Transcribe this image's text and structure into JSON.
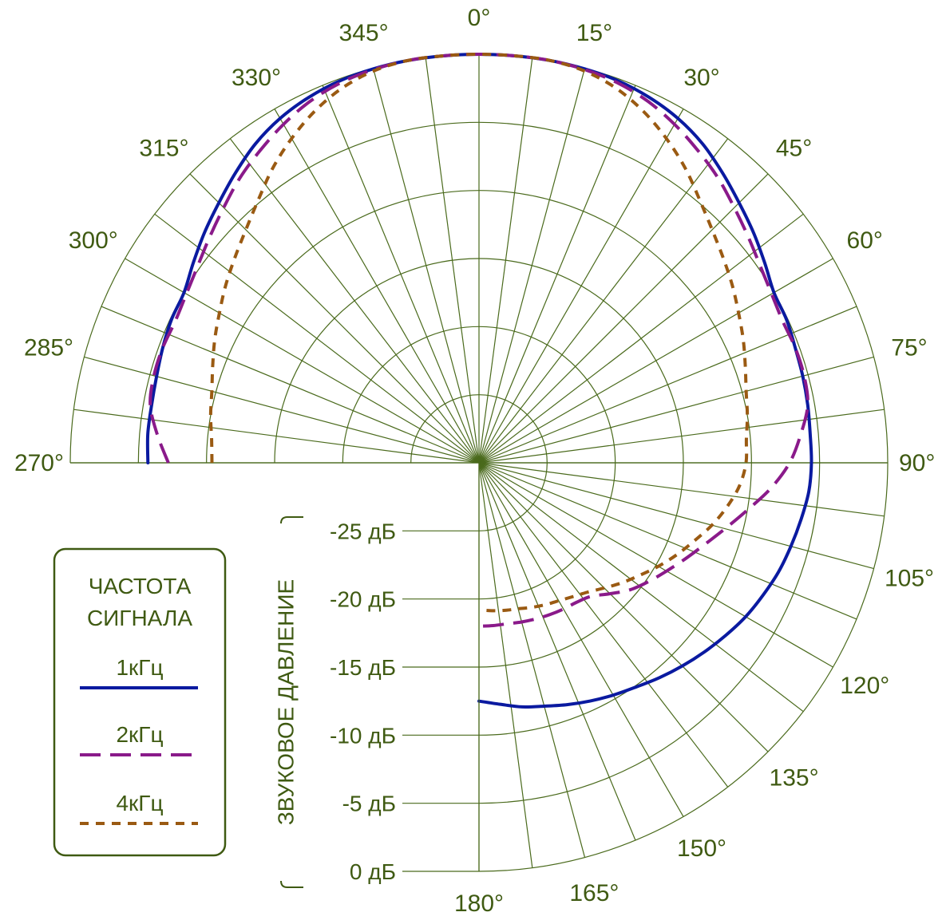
{
  "chart_data": {
    "type": "polar-line",
    "angle_unit": "degrees",
    "angle_zero": "top",
    "angle_direction": "clockwise",
    "angle_ticks": [
      "0°",
      "15°",
      "30°",
      "45°",
      "60°",
      "75°",
      "90°",
      "105°",
      "120°",
      "135°",
      "150°",
      "165°",
      "180°",
      "270°",
      "285°",
      "300°",
      "315°",
      "330°",
      "345°"
    ],
    "angle_tick_values": [
      0,
      15,
      30,
      45,
      60,
      75,
      90,
      105,
      120,
      135,
      150,
      165,
      180,
      270,
      285,
      300,
      315,
      330,
      345
    ],
    "radial_unit": "dB",
    "radial_range": [
      -30,
      0
    ],
    "radial_ticks": [
      "0 дБ",
      "-5 дБ",
      "-10 дБ",
      "-15 дБ",
      "-20 дБ",
      "-25 дБ"
    ],
    "radial_tick_values": [
      0,
      -5,
      -10,
      -15,
      -20,
      -25
    ],
    "radial_axis_label": "ЗВУКОВОЕ ДАВЛЕНИЕ",
    "grid": true,
    "legend_position": "bottom-left",
    "legend_title": "ЧАСТОТА СИГНАЛА",
    "legend_title_lines": [
      "ЧАСТОТА",
      "СИГНАЛА"
    ],
    "series": [
      {
        "name": "1кГц",
        "color": "#0a1aa0",
        "style": "solid",
        "angles": [
          -90,
          -85,
          -80,
          -75,
          -70,
          -65,
          -60,
          -55,
          -50,
          -45,
          -40,
          -35,
          -30,
          -25,
          -20,
          -15,
          -10,
          -5,
          0,
          5,
          10,
          15,
          20,
          25,
          30,
          35,
          40,
          45,
          50,
          55,
          60,
          65,
          70,
          75,
          80,
          85,
          90,
          95,
          100,
          105,
          110,
          115,
          120,
          125,
          130,
          135,
          140,
          145,
          150,
          155,
          160,
          165,
          170,
          175,
          180
        ],
        "values": [
          -5.7,
          -5.6,
          -5.6,
          -5.5,
          -5.3,
          -5.1,
          -5.0,
          -4.4,
          -3.7,
          -3.0,
          -2.2,
          -1.4,
          -0.8,
          -0.4,
          -0.15,
          -0.05,
          0,
          0,
          0,
          0,
          0,
          -0.05,
          -0.15,
          -0.4,
          -0.8,
          -1.4,
          -2.2,
          -3.0,
          -3.7,
          -4.4,
          -5.0,
          -5.1,
          -5.3,
          -5.4,
          -5.5,
          -5.6,
          -5.6,
          -5.7,
          -6.0,
          -6.3,
          -6.6,
          -7.0,
          -7.4,
          -7.9,
          -8.4,
          -8.9,
          -9.4,
          -9.9,
          -10.3,
          -10.7,
          -11.1,
          -11.5,
          -11.8,
          -12.2,
          -12.5
        ]
      },
      {
        "name": "2кГц",
        "color": "#8a1a8a",
        "style": "dashed",
        "angles": [
          -90,
          -85,
          -80,
          -75,
          -70,
          -65,
          -60,
          -55,
          -50,
          -45,
          -40,
          -35,
          -30,
          -25,
          -20,
          -15,
          -10,
          -5,
          0,
          5,
          10,
          15,
          20,
          25,
          30,
          35,
          40,
          45,
          50,
          55,
          60,
          65,
          70,
          75,
          80,
          85,
          90,
          95,
          100,
          105,
          110,
          115,
          120,
          125,
          130,
          135,
          140,
          145,
          150,
          155,
          160,
          165,
          170,
          175,
          180
        ],
        "values": [
          -7.2,
          -6.3,
          -5.5,
          -5.3,
          -5.3,
          -5.4,
          -5.2,
          -4.8,
          -4.2,
          -3.5,
          -2.7,
          -2.0,
          -1.3,
          -0.7,
          -0.3,
          -0.1,
          0,
          0,
          0,
          0,
          0,
          -0.1,
          -0.3,
          -0.7,
          -1.3,
          -2.0,
          -2.7,
          -3.5,
          -4.2,
          -4.8,
          -5.2,
          -5.4,
          -5.3,
          -5.3,
          -5.5,
          -6.3,
          -7.2,
          -8.5,
          -10.0,
          -11.3,
          -12.4,
          -13.3,
          -14.1,
          -14.8,
          -15.5,
          -16.4,
          -17.2,
          -17.5,
          -17.6,
          -17.7,
          -17.8,
          -17.9,
          -18.0,
          -18.0,
          -18.0
        ]
      },
      {
        "name": "4кГц",
        "color": "#9a5a12",
        "style": "dotted",
        "angles": [
          -90,
          -85,
          -80,
          -75,
          -70,
          -65,
          -60,
          -55,
          -50,
          -45,
          -40,
          -35,
          -30,
          -25,
          -20,
          -15,
          -10,
          -5,
          0,
          5,
          10,
          15,
          20,
          25,
          30,
          35,
          40,
          45,
          50,
          55,
          60,
          65,
          70,
          75,
          80,
          85,
          90,
          95,
          100,
          105,
          110,
          115,
          120,
          125,
          130,
          135,
          140,
          145,
          150,
          155,
          160,
          165,
          170,
          175,
          180
        ],
        "values": [
          -10.4,
          -10.3,
          -10.0,
          -9.7,
          -9.2,
          -8.6,
          -8.0,
          -7.3,
          -6.6,
          -5.8,
          -4.8,
          -3.6,
          -2.5,
          -1.5,
          -0.7,
          -0.2,
          0,
          0,
          0,
          0,
          0,
          -0.2,
          -0.7,
          -1.5,
          -2.5,
          -3.6,
          -4.8,
          -5.8,
          -6.6,
          -7.3,
          -8.0,
          -8.6,
          -9.2,
          -9.7,
          -10.0,
          -10.3,
          -10.4,
          -10.8,
          -11.5,
          -12.3,
          -13.2,
          -14.0,
          -14.8,
          -15.6,
          -16.3,
          -17.0,
          -17.6,
          -18.0,
          -18.3,
          -18.5,
          -18.7,
          -18.9,
          -19.0,
          -19.1,
          -19.2
        ]
      }
    ]
  }
}
